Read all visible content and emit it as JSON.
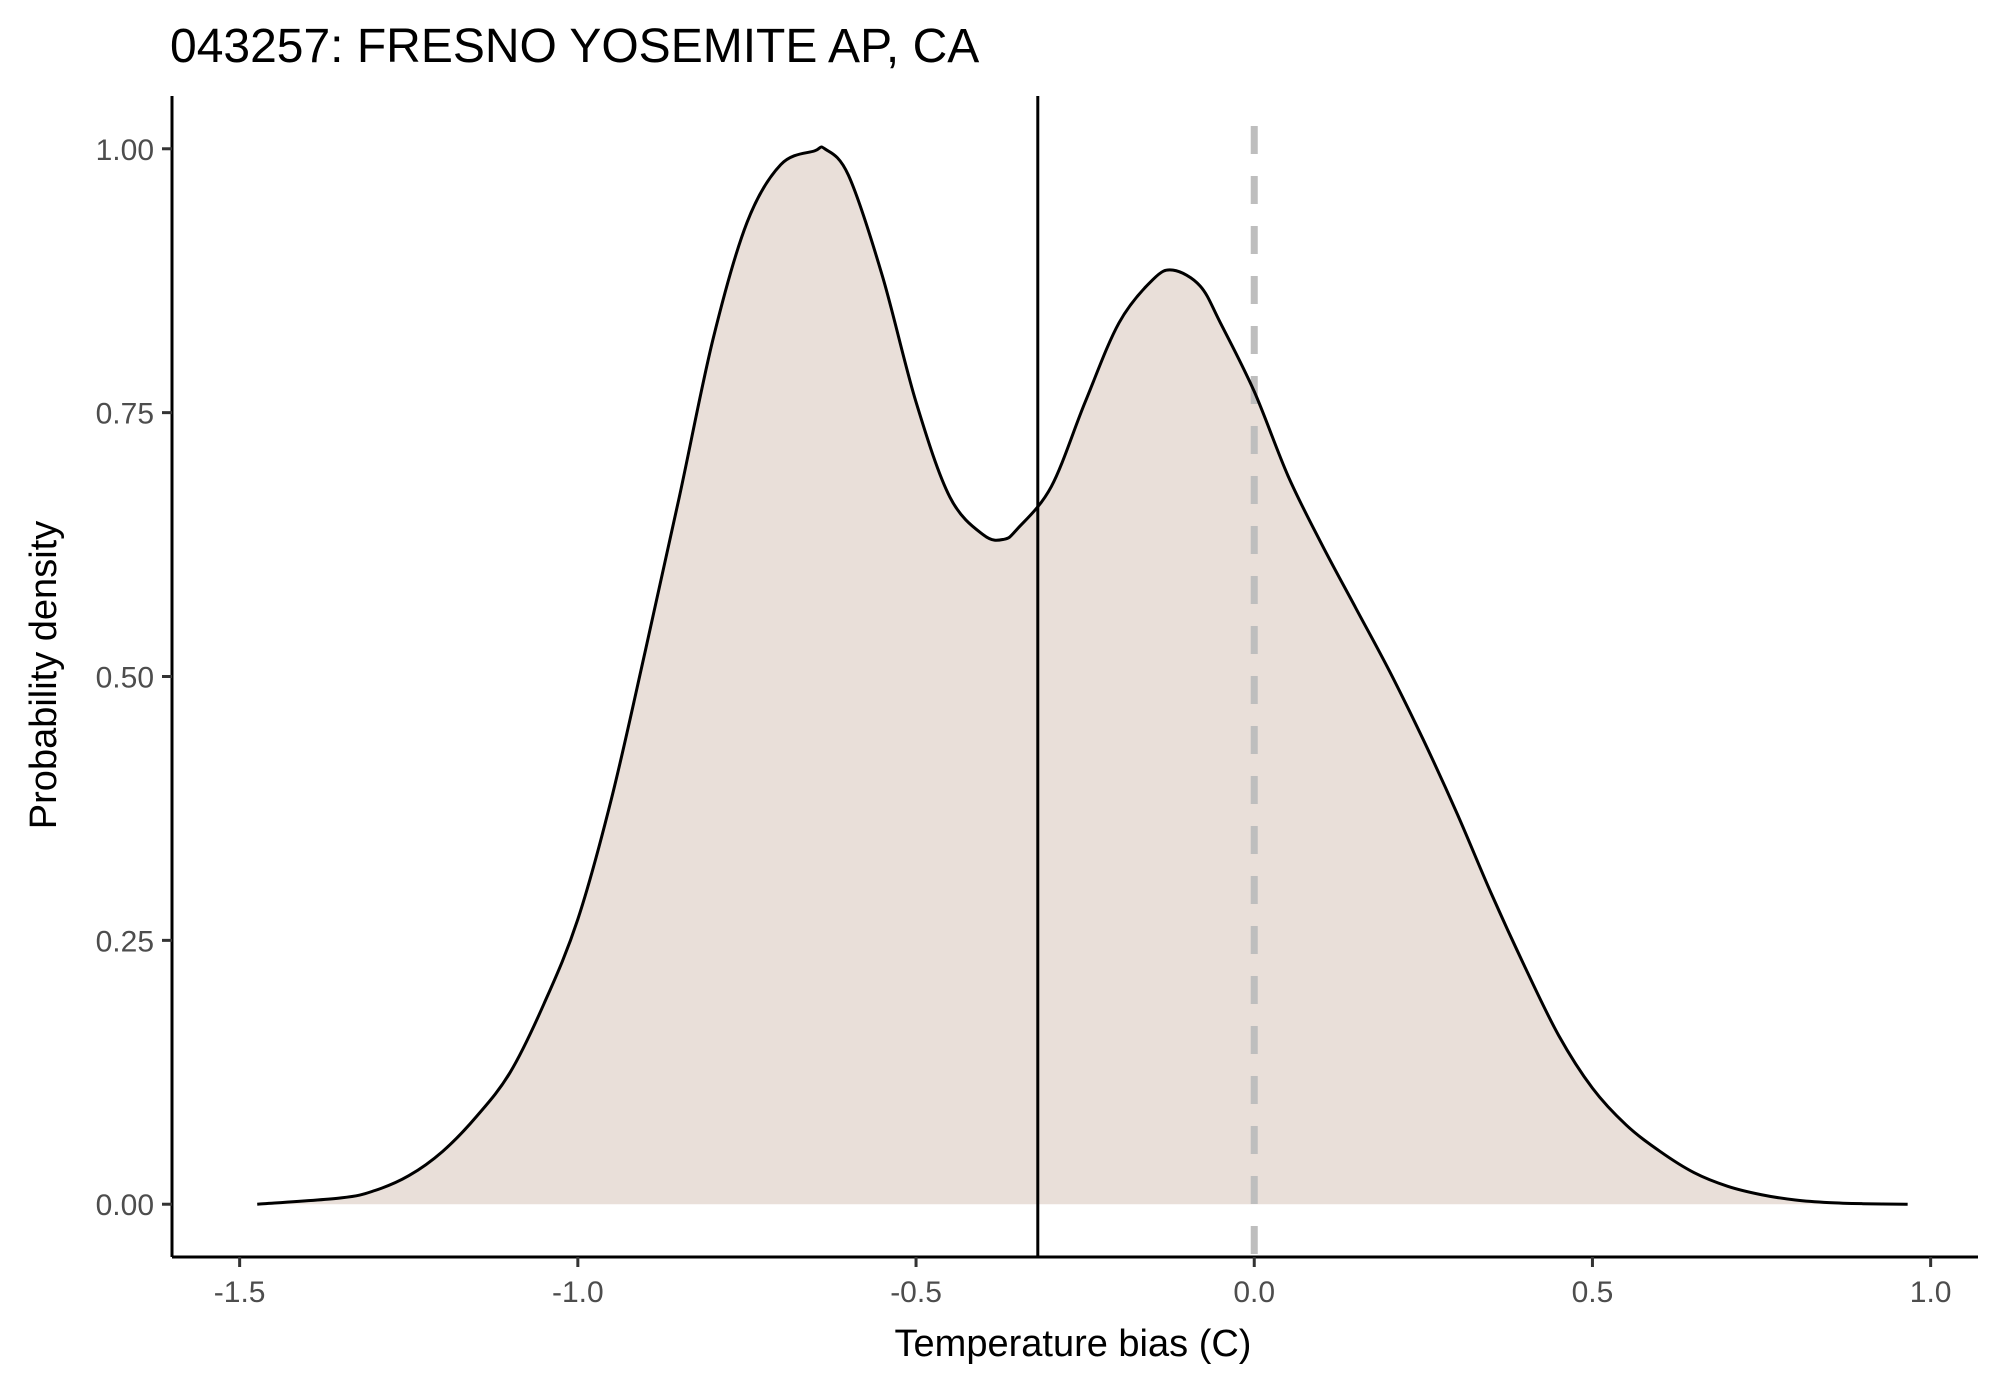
{
  "chart_data": {
    "type": "area",
    "title": "043257: FRESNO YOSEMITE AP, CA",
    "xlabel": "Temperature bias (C)",
    "ylabel": "Probability density",
    "xlim": [
      -1.6,
      1.07
    ],
    "ylim": [
      -0.05,
      1.05
    ],
    "x_ticks": [
      -1.5,
      -1.0,
      -0.5,
      0.0,
      0.5,
      1.0
    ],
    "x_tick_labels": [
      "-1.5",
      "-1.0",
      "-0.5",
      "0.0",
      "0.5",
      "1.0"
    ],
    "y_ticks": [
      0.0,
      0.25,
      0.5,
      0.75,
      1.0
    ],
    "y_tick_labels": [
      "0.00",
      "0.25",
      "0.50",
      "0.75",
      "1.00"
    ],
    "grid": false,
    "legend": "none",
    "series": [
      {
        "x": [
          -1.474,
          -1.35,
          -1.3,
          -1.25,
          -1.2,
          -1.15,
          -1.1,
          -1.05,
          -1.0,
          -0.95,
          -0.9,
          -0.85,
          -0.8,
          -0.75,
          -0.7,
          -0.65,
          -0.635,
          -0.6,
          -0.55,
          -0.5,
          -0.45,
          -0.4,
          -0.37,
          -0.35,
          -0.3,
          -0.25,
          -0.2,
          -0.15,
          -0.12,
          -0.08,
          -0.05,
          0.0,
          0.05,
          0.1,
          0.15,
          0.2,
          0.25,
          0.3,
          0.35,
          0.4,
          0.45,
          0.5,
          0.55,
          0.6,
          0.65,
          0.7,
          0.75,
          0.8,
          0.85,
          0.9,
          0.966
        ],
        "y": [
          0.0,
          0.006,
          0.013,
          0.027,
          0.05,
          0.083,
          0.125,
          0.19,
          0.27,
          0.385,
          0.525,
          0.67,
          0.82,
          0.93,
          0.985,
          0.998,
          1.0,
          0.975,
          0.88,
          0.76,
          0.67,
          0.634,
          0.63,
          0.64,
          0.68,
          0.76,
          0.835,
          0.876,
          0.885,
          0.87,
          0.835,
          0.77,
          0.69,
          0.625,
          0.565,
          0.505,
          0.44,
          0.37,
          0.295,
          0.225,
          0.16,
          0.11,
          0.075,
          0.05,
          0.03,
          0.017,
          0.009,
          0.004,
          0.0015,
          0.0005,
          0.0
        ],
        "fill": "#e9dfd9",
        "line": "#000000"
      }
    ],
    "reference_lines": [
      {
        "x": -0.32,
        "color": "#000000",
        "style": "solid"
      },
      {
        "x": 0.0,
        "color": "#bebebe",
        "style": "dashed"
      }
    ]
  }
}
